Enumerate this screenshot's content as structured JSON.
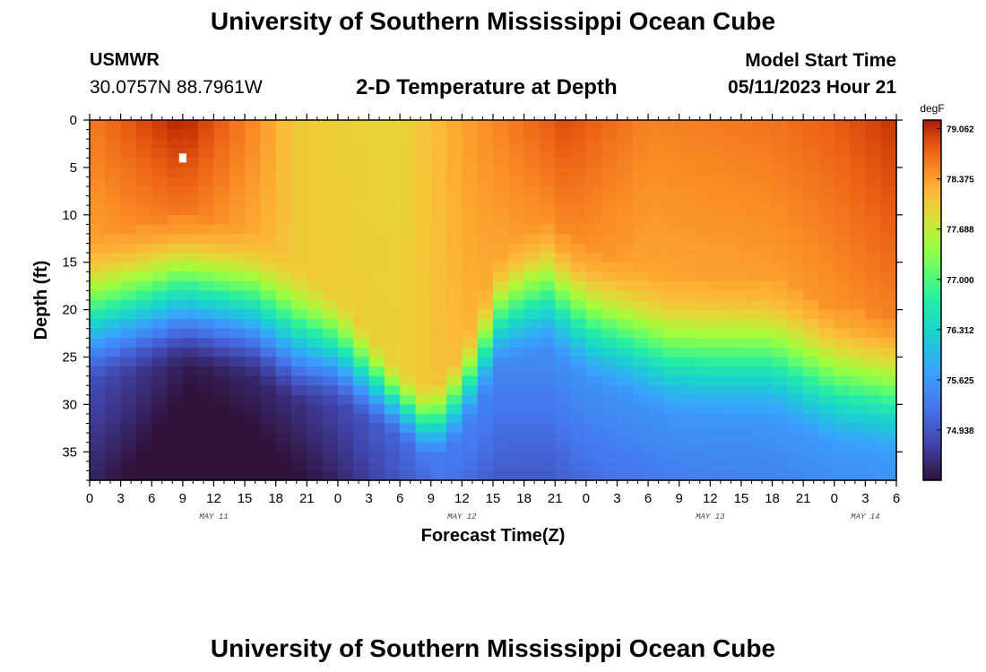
{
  "header": {
    "title": "University of Southern Mississippi Ocean Cube",
    "station": "USMWR",
    "coords": "30.0757N  88.7961W",
    "subtitle": "2-D Temperature at Depth",
    "start_label": "Model Start Time",
    "start_value": "05/11/2023 Hour 21"
  },
  "footer": {
    "title": "University of Southern Mississippi Ocean Cube"
  },
  "colors": {
    "background": "#ffffff",
    "axis": "#000000",
    "marker": "#ffffff"
  },
  "chart_data": {
    "type": "heatmap",
    "xlabel": "Forecast Time(Z)",
    "ylabel": "Depth (ft)",
    "x_range_hours": [
      0,
      78
    ],
    "y_range_ft": [
      0,
      38
    ],
    "x_step_hours": 1.5,
    "y_step_ft": 1,
    "x_ticks": [
      {
        "h": 0,
        "label": "0"
      },
      {
        "h": 3,
        "label": "3"
      },
      {
        "h": 6,
        "label": "6"
      },
      {
        "h": 9,
        "label": "9"
      },
      {
        "h": 12,
        "label": "12"
      },
      {
        "h": 15,
        "label": "15"
      },
      {
        "h": 18,
        "label": "18"
      },
      {
        "h": 21,
        "label": "21"
      },
      {
        "h": 24,
        "label": "0"
      },
      {
        "h": 27,
        "label": "3"
      },
      {
        "h": 30,
        "label": "6"
      },
      {
        "h": 33,
        "label": "9"
      },
      {
        "h": 36,
        "label": "12"
      },
      {
        "h": 39,
        "label": "15"
      },
      {
        "h": 42,
        "label": "18"
      },
      {
        "h": 45,
        "label": "21"
      },
      {
        "h": 48,
        "label": "0"
      },
      {
        "h": 51,
        "label": "3"
      },
      {
        "h": 54,
        "label": "6"
      },
      {
        "h": 57,
        "label": "9"
      },
      {
        "h": 60,
        "label": "12"
      },
      {
        "h": 63,
        "label": "15"
      },
      {
        "h": 66,
        "label": "18"
      },
      {
        "h": 69,
        "label": "21"
      },
      {
        "h": 72,
        "label": "0"
      },
      {
        "h": 75,
        "label": "3"
      },
      {
        "h": 78,
        "label": "6"
      }
    ],
    "day_labels": [
      {
        "h": 12,
        "label": "MAY 11"
      },
      {
        "h": 36,
        "label": "MAY 12"
      },
      {
        "h": 60,
        "label": "MAY 13"
      },
      {
        "h": 75,
        "label": "MAY 14"
      }
    ],
    "y_ticks": [
      0,
      5,
      10,
      15,
      20,
      25,
      30,
      35
    ],
    "colorbar": {
      "units": "degF",
      "min": 74.25,
      "max": 79.18,
      "ticks": [
        "79.062",
        "78.375",
        "77.688",
        "77.000",
        "76.312",
        "75.625",
        "74.938"
      ]
    },
    "surface_temp_degF": [
      {
        "h": 0,
        "t": 78.6
      },
      {
        "h": 9,
        "t": 79.15
      },
      {
        "h": 16,
        "t": 78.5
      },
      {
        "h": 20,
        "t": 78.05
      },
      {
        "h": 30,
        "t": 77.95
      },
      {
        "h": 37,
        "t": 78.4
      },
      {
        "h": 46,
        "t": 78.9
      },
      {
        "h": 54,
        "t": 78.55
      },
      {
        "h": 66,
        "t": 78.65
      },
      {
        "h": 72,
        "t": 78.8
      },
      {
        "h": 78,
        "t": 79.05
      }
    ],
    "mixed_layer_depth_ft": [
      {
        "h": 0,
        "d": 13
      },
      {
        "h": 9,
        "d": 10
      },
      {
        "h": 16,
        "d": 12
      },
      {
        "h": 24,
        "d": 18
      },
      {
        "h": 30,
        "d": 26
      },
      {
        "h": 33,
        "d": 28
      },
      {
        "h": 36,
        "d": 24
      },
      {
        "h": 40,
        "d": 14
      },
      {
        "h": 44,
        "d": 11
      },
      {
        "h": 48,
        "d": 14
      },
      {
        "h": 56,
        "d": 17
      },
      {
        "h": 66,
        "d": 17
      },
      {
        "h": 72,
        "d": 20
      },
      {
        "h": 78,
        "d": 21
      }
    ],
    "thermocline_thickness_ft": [
      {
        "h": 0,
        "w": 16
      },
      {
        "h": 10,
        "w": 17
      },
      {
        "h": 20,
        "w": 16
      },
      {
        "h": 30,
        "w": 8
      },
      {
        "h": 36,
        "w": 10
      },
      {
        "h": 42,
        "w": 14
      },
      {
        "h": 60,
        "w": 16
      },
      {
        "h": 78,
        "w": 16
      }
    ],
    "bottom_temp_degF": [
      {
        "h": 0,
        "t": 74.8
      },
      {
        "h": 10,
        "t": 74.3
      },
      {
        "h": 20,
        "t": 74.5
      },
      {
        "h": 34,
        "t": 75.3
      },
      {
        "h": 48,
        "t": 75.5
      },
      {
        "h": 78,
        "t": 75.6
      }
    ],
    "marker": {
      "h": 9,
      "depth_ft": 4
    }
  }
}
